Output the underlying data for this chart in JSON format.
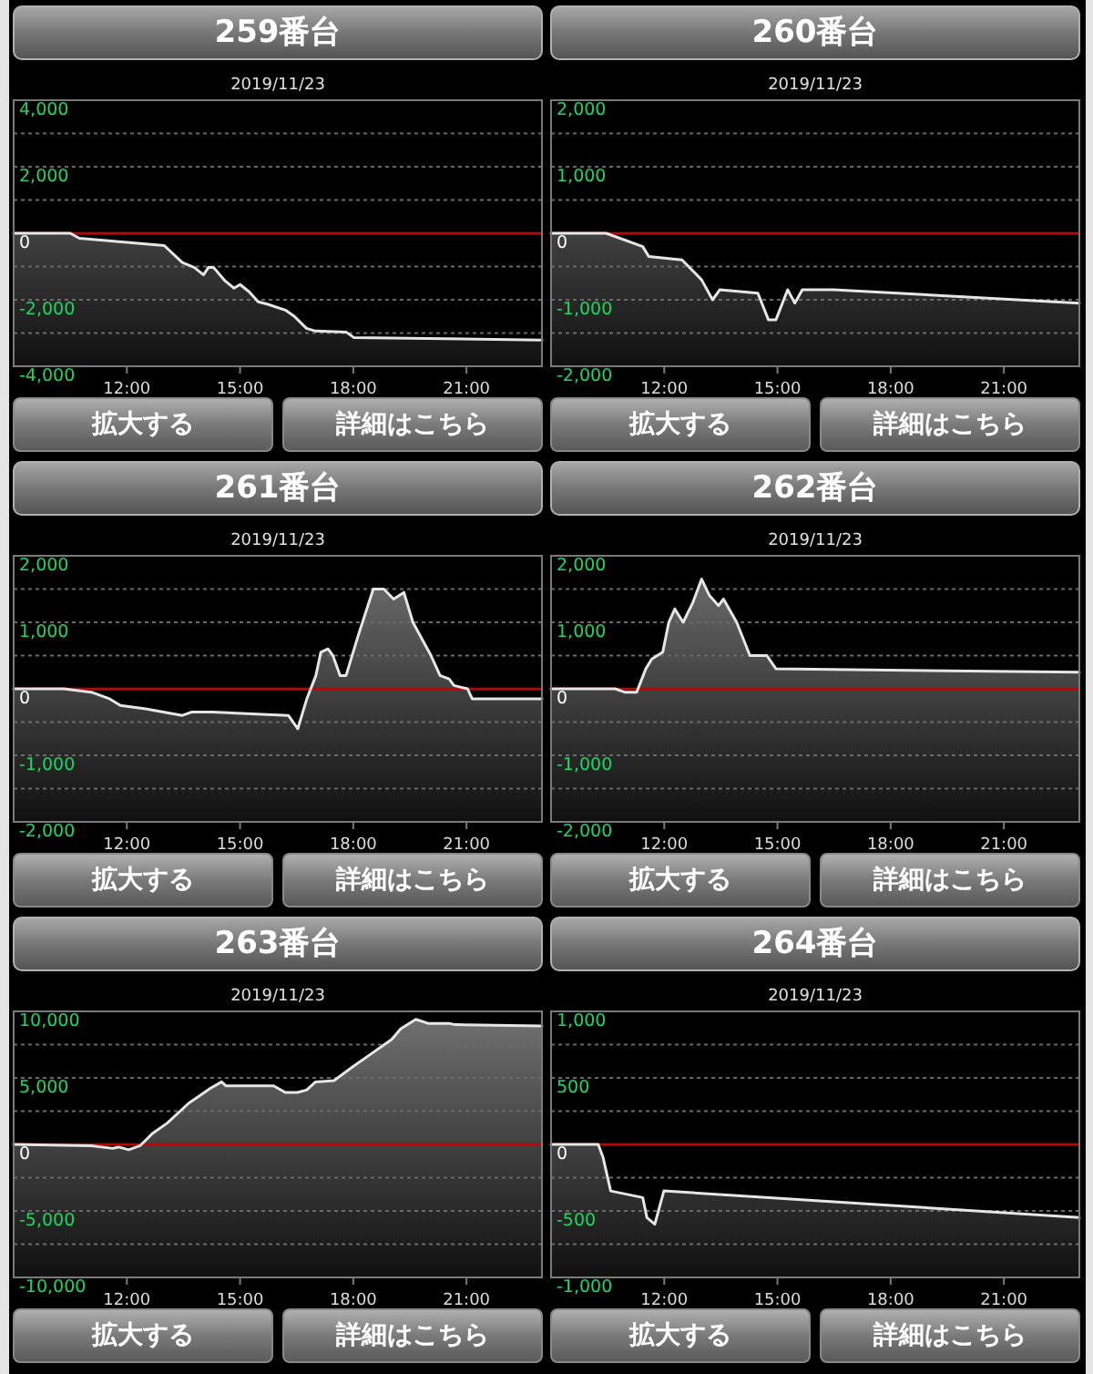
{
  "chart_data": [
    {
      "type": "line",
      "title": "259番台",
      "subtitle": "2019/11/23",
      "annotations": [
        "拡大する",
        "詳細はこちら"
      ],
      "x": [
        9,
        10.5,
        10.74,
        12.99,
        13.47,
        13.79,
        14.03,
        14.16,
        14.3,
        14.6,
        14.84,
        15.0,
        15.24,
        15.48,
        15.72,
        16.2,
        16.44,
        16.76,
        17.0,
        17.81,
        18.02,
        23
      ],
      "series": [
        {
          "color": "#e6e6e6",
          "values": [
            0,
            0,
            -150,
            -370,
            -880,
            -1030,
            -1250,
            -1030,
            -1030,
            -1430,
            -1650,
            -1540,
            -1760,
            -2060,
            -2130,
            -2310,
            -2500,
            -2860,
            -2940,
            -2970,
            -3140,
            -3210
          ],
          "upper": [
            0,
            0,
            -150,
            -370,
            -880,
            -1030,
            -1250,
            -1030,
            -1030,
            -1430,
            -1650,
            -1540,
            -1760,
            -2060,
            -2130,
            -2310,
            -2500,
            -2860,
            -2940,
            -2970,
            -3140,
            -3210
          ],
          "lower": [
            -4000,
            -4000,
            -4000,
            -4000,
            -4000,
            -4000,
            -4000,
            -4000,
            -4000,
            -4000,
            -4000,
            -4000,
            -4000,
            -4000,
            -4000,
            -4000,
            -4000,
            -4000,
            -4000,
            -4000,
            -4000,
            -4000
          ]
        }
      ],
      "xlim": [
        9,
        23
      ],
      "xticks": [
        {
          "value": 12,
          "label": "12:00"
        },
        {
          "value": 15,
          "label": "15:00"
        },
        {
          "value": 18,
          "label": "18:00"
        },
        {
          "value": 21,
          "label": "21:00"
        }
      ],
      "ylim": [
        -4000,
        4000
      ],
      "yticks": [
        {
          "value": 4000,
          "label": "4,000"
        },
        {
          "value": 3000,
          "label": null
        },
        {
          "value": 2000,
          "label": "2,000"
        },
        {
          "value": 1000,
          "label": null
        },
        0,
        {
          "value": -1000,
          "label": null
        },
        {
          "value": -2000,
          "label": "-2,000"
        },
        {
          "value": -3000,
          "label": null
        },
        {
          "value": -4000,
          "label": "-4,000"
        }
      ],
      "grid": "y",
      "ref_lines": [
        {
          "axis": "y",
          "value": 0,
          "color": "#cc0000"
        }
      ]
    },
    {
      "type": "line",
      "title": "260番台",
      "subtitle": "2019/11/23",
      "annotations": [
        "拡大する",
        "詳細はこちら"
      ],
      "x": [
        9,
        10.46,
        11.43,
        11.59,
        12.47,
        12.99,
        13.28,
        13.47,
        14.48,
        14.76,
        14.96,
        15.27,
        15.46,
        15.66,
        16.49,
        23
      ],
      "series": [
        {
          "color": "#e6e6e6",
          "values": [
            0,
            0,
            -200,
            -350,
            -400,
            -700,
            -1000,
            -850,
            -900,
            -1300,
            -1300,
            -850,
            -1050,
            -850,
            -850,
            -1050
          ],
          "upper": [
            0,
            0,
            -200,
            -350,
            -400,
            -700,
            -1000,
            -850,
            -900,
            -1300,
            -1300,
            -850,
            -1050,
            -850,
            -850,
            -1050
          ],
          "lower": [
            -2000,
            -2000,
            -2000,
            -2000,
            -2000,
            -2000,
            -2000,
            -2000,
            -2000,
            -2000,
            -2000,
            -2000,
            -2000,
            -2000,
            -2000,
            -2000
          ]
        }
      ],
      "xlim": [
        9,
        23
      ],
      "xticks": [
        {
          "value": 12,
          "label": "12:00"
        },
        {
          "value": 15,
          "label": "15:00"
        },
        {
          "value": 18,
          "label": "18:00"
        },
        {
          "value": 21,
          "label": "21:00"
        }
      ],
      "ylim": [
        -2000,
        2000
      ],
      "yticks": [
        {
          "value": 2000,
          "label": "2,000"
        },
        {
          "value": 1500,
          "label": null
        },
        {
          "value": 1000,
          "label": "1,000"
        },
        {
          "value": 500,
          "label": null
        },
        0,
        {
          "value": -500,
          "label": null
        },
        {
          "value": -1000,
          "label": "-1,000"
        },
        {
          "value": -1500,
          "label": null
        },
        {
          "value": -2000,
          "label": "-2,000"
        }
      ],
      "grid": "y",
      "ref_lines": [
        {
          "axis": "y",
          "value": 0,
          "color": "#cc0000"
        }
      ]
    },
    {
      "type": "line",
      "title": "261番台",
      "subtitle": "2019/11/23",
      "annotations": [
        "拡大する",
        "詳細はこちら"
      ],
      "x": [
        9,
        10.33,
        11.06,
        11.54,
        11.83,
        12.5,
        13.47,
        13.71,
        14.27,
        16.28,
        16.53,
        16.77,
        17.01,
        17.14,
        17.33,
        17.46,
        17.65,
        17.81,
        18.13,
        18.53,
        18.81,
        19.07,
        19.34,
        19.58,
        20.06,
        20.3,
        20.54,
        20.67,
        21.03,
        21.15,
        23
      ],
      "series": [
        {
          "color": "#e6e6e6",
          "values": [
            0,
            0,
            -50,
            -150,
            -250,
            -300,
            -400,
            -350,
            -350,
            -400,
            -600,
            -150,
            200,
            550,
            600,
            500,
            200,
            200,
            800,
            1500,
            1500,
            1350,
            1450,
            1000,
            500,
            200,
            150,
            50,
            0,
            -150,
            -150
          ],
          "upper": [
            0,
            0,
            -50,
            -150,
            -250,
            -300,
            -400,
            -350,
            -350,
            -400,
            -600,
            -150,
            200,
            550,
            600,
            500,
            200,
            200,
            800,
            1500,
            1500,
            1350,
            1450,
            1000,
            500,
            200,
            150,
            50,
            0,
            -150,
            -150
          ],
          "lower": [
            -2000,
            -2000,
            -2000,
            -2000,
            -2000,
            -2000,
            -2000,
            -2000,
            -2000,
            -2000,
            -2000,
            -2000,
            -2000,
            -2000,
            -2000,
            -2000,
            -2000,
            -2000,
            -2000,
            -2000,
            -2000,
            -2000,
            -2000,
            -2000,
            -2000,
            -2000,
            -2000,
            -2000,
            -2000,
            -2000,
            -2000
          ]
        }
      ],
      "xlim": [
        9,
        23
      ],
      "xticks": [
        {
          "value": 12,
          "label": "12:00"
        },
        {
          "value": 15,
          "label": "15:00"
        },
        {
          "value": 18,
          "label": "18:00"
        },
        {
          "value": 21,
          "label": "21:00"
        }
      ],
      "ylim": [
        -2000,
        2000
      ],
      "yticks": [
        {
          "value": 2000,
          "label": "2,000"
        },
        {
          "value": 1500,
          "label": null
        },
        {
          "value": 1000,
          "label": "1,000"
        },
        {
          "value": 500,
          "label": null
        },
        0,
        {
          "value": -500,
          "label": null
        },
        {
          "value": -1000,
          "label": "-1,000"
        },
        {
          "value": -1500,
          "label": null
        },
        {
          "value": -2000,
          "label": "-2,000"
        }
      ],
      "grid": "y",
      "ref_lines": [
        {
          "axis": "y",
          "value": 0,
          "color": "#cc0000"
        }
      ]
    },
    {
      "type": "line",
      "title": "262番台",
      "subtitle": "2019/11/23",
      "annotations": [
        "拡大する",
        "詳細はこちら"
      ],
      "x": [
        9,
        10.7,
        10.95,
        11.27,
        11.51,
        11.67,
        11.96,
        12.12,
        12.28,
        12.5,
        12.76,
        12.99,
        13.2,
        13.44,
        13.57,
        13.92,
        14.27,
        14.72,
        14.96,
        23
      ],
      "series": [
        {
          "color": "#e6e6e6",
          "values": [
            0,
            0,
            -50,
            -50,
            300,
            450,
            550,
            1000,
            1200,
            1000,
            1300,
            1650,
            1400,
            1250,
            1350,
            1000,
            500,
            500,
            300,
            250
          ],
          "upper": [
            0,
            0,
            -50,
            -50,
            300,
            450,
            550,
            1000,
            1200,
            1000,
            1300,
            1650,
            1400,
            1250,
            1350,
            1000,
            500,
            500,
            300,
            250
          ],
          "lower": [
            -2000,
            -2000,
            -2000,
            -2000,
            -2000,
            -2000,
            -2000,
            -2000,
            -2000,
            -2000,
            -2000,
            -2000,
            -2000,
            -2000,
            -2000,
            -2000,
            -2000,
            -2000,
            -2000,
            -2000
          ]
        }
      ],
      "xlim": [
        9,
        23
      ],
      "xticks": [
        {
          "value": 12,
          "label": "12:00"
        },
        {
          "value": 15,
          "label": "15:00"
        },
        {
          "value": 18,
          "label": "18:00"
        },
        {
          "value": 21,
          "label": "21:00"
        }
      ],
      "ylim": [
        -2000,
        2000
      ],
      "yticks": [
        {
          "value": 2000,
          "label": "2,000"
        },
        {
          "value": 1500,
          "label": null
        },
        {
          "value": 1000,
          "label": "1,000"
        },
        {
          "value": 500,
          "label": null
        },
        0,
        {
          "value": -500,
          "label": null
        },
        {
          "value": -1000,
          "label": "-1,000"
        },
        {
          "value": -1500,
          "label": null
        },
        {
          "value": -2000,
          "label": "-2,000"
        }
      ],
      "grid": "y",
      "ref_lines": [
        {
          "axis": "y",
          "value": 0,
          "color": "#cc0000"
        }
      ]
    },
    {
      "type": "line",
      "title": "263番台",
      "subtitle": "2019/11/23",
      "annotations": [
        "拡大する",
        "詳細はこちら"
      ],
      "x": [
        9,
        11.06,
        11.62,
        11.78,
        12.05,
        12.35,
        12.67,
        13.07,
        13.64,
        13.95,
        14.2,
        14.51,
        14.63,
        15.89,
        16.2,
        16.52,
        16.77,
        17.0,
        17.49,
        17.97,
        18.37,
        19.02,
        19.26,
        19.66,
        19.98,
        20.54,
        20.7,
        23
      ],
      "series": [
        {
          "color": "#e6e6e6",
          "values": [
            0,
            -100,
            -300,
            -200,
            -400,
            -100,
            800,
            1600,
            3100,
            3700,
            4200,
            4700,
            4400,
            4400,
            3900,
            3900,
            4100,
            4700,
            4800,
            5800,
            6600,
            7900,
            8700,
            9400,
            9100,
            9100,
            9000,
            8900
          ],
          "upper": [
            0,
            -100,
            -300,
            -200,
            -400,
            -100,
            800,
            1600,
            3100,
            3700,
            4200,
            4700,
            4400,
            4400,
            3900,
            3900,
            4100,
            4700,
            4800,
            5800,
            6600,
            7900,
            8700,
            9400,
            9100,
            9100,
            9000,
            8900
          ],
          "lower": [
            -10000,
            -10000,
            -10000,
            -10000,
            -10000,
            -10000,
            -10000,
            -10000,
            -10000,
            -10000,
            -10000,
            -10000,
            -10000,
            -10000,
            -10000,
            -10000,
            -10000,
            -10000,
            -10000,
            -10000,
            -10000,
            -10000,
            -10000,
            -10000,
            -10000,
            -10000,
            -10000,
            -10000
          ]
        }
      ],
      "xlim": [
        9,
        23
      ],
      "xticks": [
        {
          "value": 12,
          "label": "12:00"
        },
        {
          "value": 15,
          "label": "15:00"
        },
        {
          "value": 18,
          "label": "18:00"
        },
        {
          "value": 21,
          "label": "21:00"
        }
      ],
      "ylim": [
        -10000,
        10000
      ],
      "yticks": [
        {
          "value": 10000,
          "label": "10,000"
        },
        {
          "value": 7500,
          "label": null
        },
        {
          "value": 5000,
          "label": "5,000"
        },
        {
          "value": 2500,
          "label": null
        },
        0,
        {
          "value": -2500,
          "label": null
        },
        {
          "value": -5000,
          "label": "-5,000"
        },
        {
          "value": -7500,
          "label": null
        },
        {
          "value": -10000,
          "label": "-10,000"
        }
      ],
      "grid": "y",
      "ref_lines": [
        {
          "axis": "y",
          "value": 0,
          "color": "#cc0000"
        }
      ]
    },
    {
      "type": "line",
      "title": "264番台",
      "subtitle": "2019/11/23",
      "annotations": [
        "拡大する",
        "詳細はこちら"
      ],
      "x": [
        9,
        10.25,
        10.38,
        10.58,
        11.43,
        11.54,
        11.75,
        11.99,
        23
      ],
      "series": [
        {
          "color": "#e6e6e6",
          "values": [
            0,
            0,
            -100,
            -350,
            -400,
            -550,
            -600,
            -350,
            -550
          ],
          "upper": [
            0,
            0,
            -100,
            -350,
            -400,
            -550,
            -600,
            -350,
            -550
          ],
          "lower": [
            -1000,
            -1000,
            -1000,
            -1000,
            -1000,
            -1000,
            -1000,
            -1000,
            -1000
          ]
        }
      ],
      "xlim": [
        9,
        23
      ],
      "xticks": [
        {
          "value": 12,
          "label": "12:00"
        },
        {
          "value": 15,
          "label": "15:00"
        },
        {
          "value": 18,
          "label": "18:00"
        },
        {
          "value": 21,
          "label": "21:00"
        }
      ],
      "ylim": [
        -1000,
        1000
      ],
      "yticks": [
        {
          "value": 1000,
          "label": "1,000"
        },
        {
          "value": 750,
          "label": null
        },
        500,
        {
          "value": 250,
          "label": null
        },
        0,
        {
          "value": -250,
          "label": null
        },
        -500,
        {
          "value": -750,
          "label": null
        },
        {
          "value": -1000,
          "label": "-1,000"
        }
      ],
      "grid": "y",
      "ref_lines": [
        {
          "axis": "y",
          "value": 0,
          "color": "#cc0000"
        }
      ]
    }
  ]
}
